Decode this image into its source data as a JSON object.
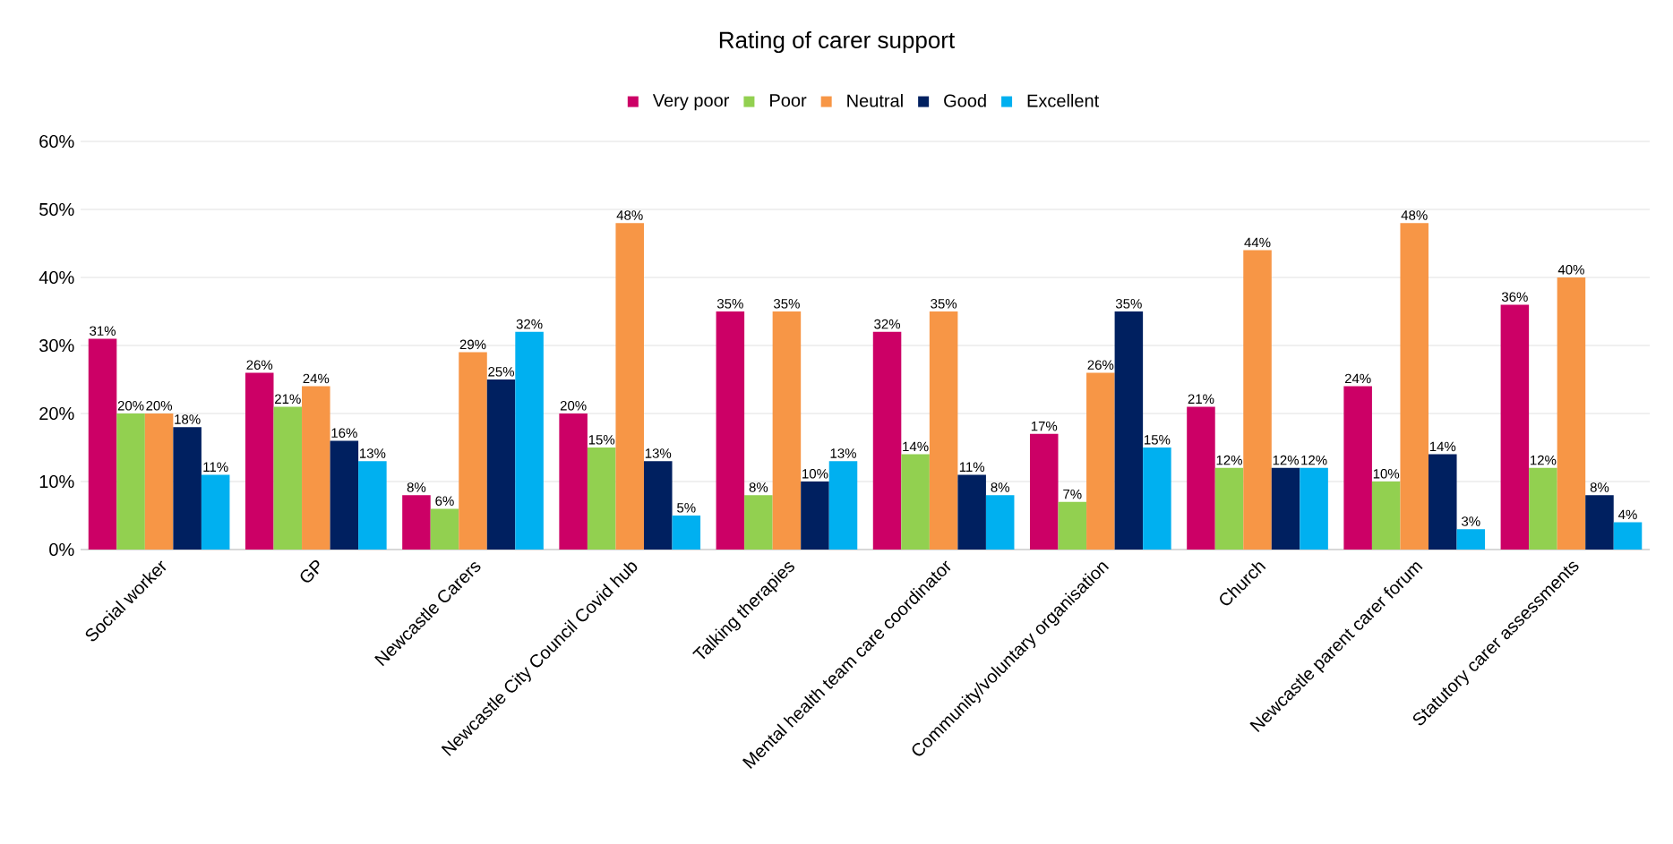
{
  "chart_data": {
    "type": "bar",
    "title": "Rating of carer support",
    "categories": [
      "Social worker",
      "GP",
      "Newcastle Carers",
      "Newcastle City Council Covid hub",
      "Talking therapies",
      "Mental health team care coordinator",
      "Community/voluntary organisation",
      "Church",
      "Newcastle parent carer forum",
      "Statutory carer assessments"
    ],
    "series": [
      {
        "name": "Very poor",
        "color": "#cc0066",
        "values": [
          31,
          26,
          8,
          20,
          35,
          32,
          17,
          21,
          24,
          36
        ],
        "value_labels": [
          "31%",
          "26%",
          "8%",
          "20%",
          "35%",
          "32%",
          "17%",
          "21%",
          "24%",
          "36%"
        ]
      },
      {
        "name": "Poor",
        "color": "#92d050",
        "values": [
          20,
          21,
          6,
          15,
          8,
          14,
          7,
          12,
          10,
          12
        ],
        "value_labels": [
          "20%",
          "21%",
          "6%",
          "15%",
          "8%",
          "14%",
          "7%",
          "12%",
          "10%",
          "12%"
        ]
      },
      {
        "name": "Neutral",
        "color": "#f79646",
        "values": [
          20,
          24,
          29,
          48,
          35,
          35,
          26,
          44,
          48,
          40
        ],
        "value_labels": [
          "20%",
          "24%",
          "29%",
          "48%",
          "35%",
          "35%",
          "26%",
          "44%",
          "48%",
          "40%"
        ]
      },
      {
        "name": "Good",
        "color": "#002060",
        "values": [
          18,
          16,
          25,
          13,
          10,
          11,
          35,
          12,
          14,
          8
        ],
        "value_labels": [
          "18%",
          "16%",
          "25%",
          "13%",
          "10%",
          "11%",
          "35%",
          "12%",
          "14%",
          "8%"
        ]
      },
      {
        "name": "Excellent",
        "color": "#00b0f0",
        "values": [
          11,
          13,
          32,
          5,
          13,
          8,
          15,
          12,
          3,
          4
        ],
        "value_labels": [
          "11%",
          "13%",
          "32%",
          "5%",
          "13%",
          "8%",
          "15%",
          "12%",
          "3%",
          "4%"
        ]
      }
    ],
    "ylim": [
      0,
      60
    ],
    "yticks": [
      {
        "value": 0,
        "label": "0%"
      },
      {
        "value": 10,
        "label": "10%"
      },
      {
        "value": 20,
        "label": "20%"
      },
      {
        "value": 30,
        "label": "30%"
      },
      {
        "value": 40,
        "label": "40%"
      },
      {
        "value": 50,
        "label": "50%"
      },
      {
        "value": 60,
        "label": "60%"
      }
    ],
    "grid": "y",
    "legend": "top"
  }
}
